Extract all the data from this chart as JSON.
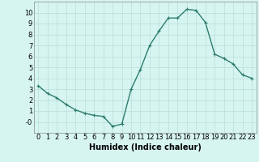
{
  "x": [
    0,
    1,
    2,
    3,
    4,
    5,
    6,
    7,
    8,
    9,
    10,
    11,
    12,
    13,
    14,
    15,
    16,
    17,
    18,
    19,
    20,
    21,
    22,
    23
  ],
  "y": [
    3.3,
    2.6,
    2.2,
    1.6,
    1.1,
    0.8,
    0.6,
    0.5,
    -0.4,
    -0.2,
    3.0,
    4.8,
    7.0,
    8.3,
    9.5,
    9.5,
    10.3,
    10.2,
    9.1,
    6.2,
    5.8,
    5.3,
    4.3,
    4.0
  ],
  "line_color": "#2e7d6e",
  "marker": "+",
  "marker_size": 3,
  "background_color": "#d6f5f0",
  "grid_color": "#b8ddd8",
  "xlabel": "Humidex (Indice chaleur)",
  "xlim": [
    -0.5,
    23.5
  ],
  "ylim": [
    -1.0,
    11.0
  ],
  "yticks": [
    0,
    1,
    2,
    3,
    4,
    5,
    6,
    7,
    8,
    9,
    10
  ],
  "ytick_labels": [
    "-0",
    "1",
    "2",
    "3",
    "4",
    "5",
    "6",
    "7",
    "8",
    "9",
    "10"
  ],
  "xticks": [
    0,
    1,
    2,
    3,
    4,
    5,
    6,
    7,
    8,
    9,
    10,
    11,
    12,
    13,
    14,
    15,
    16,
    17,
    18,
    19,
    20,
    21,
    22,
    23
  ],
  "xlabel_fontsize": 7,
  "tick_fontsize": 6,
  "line_width": 1.0
}
